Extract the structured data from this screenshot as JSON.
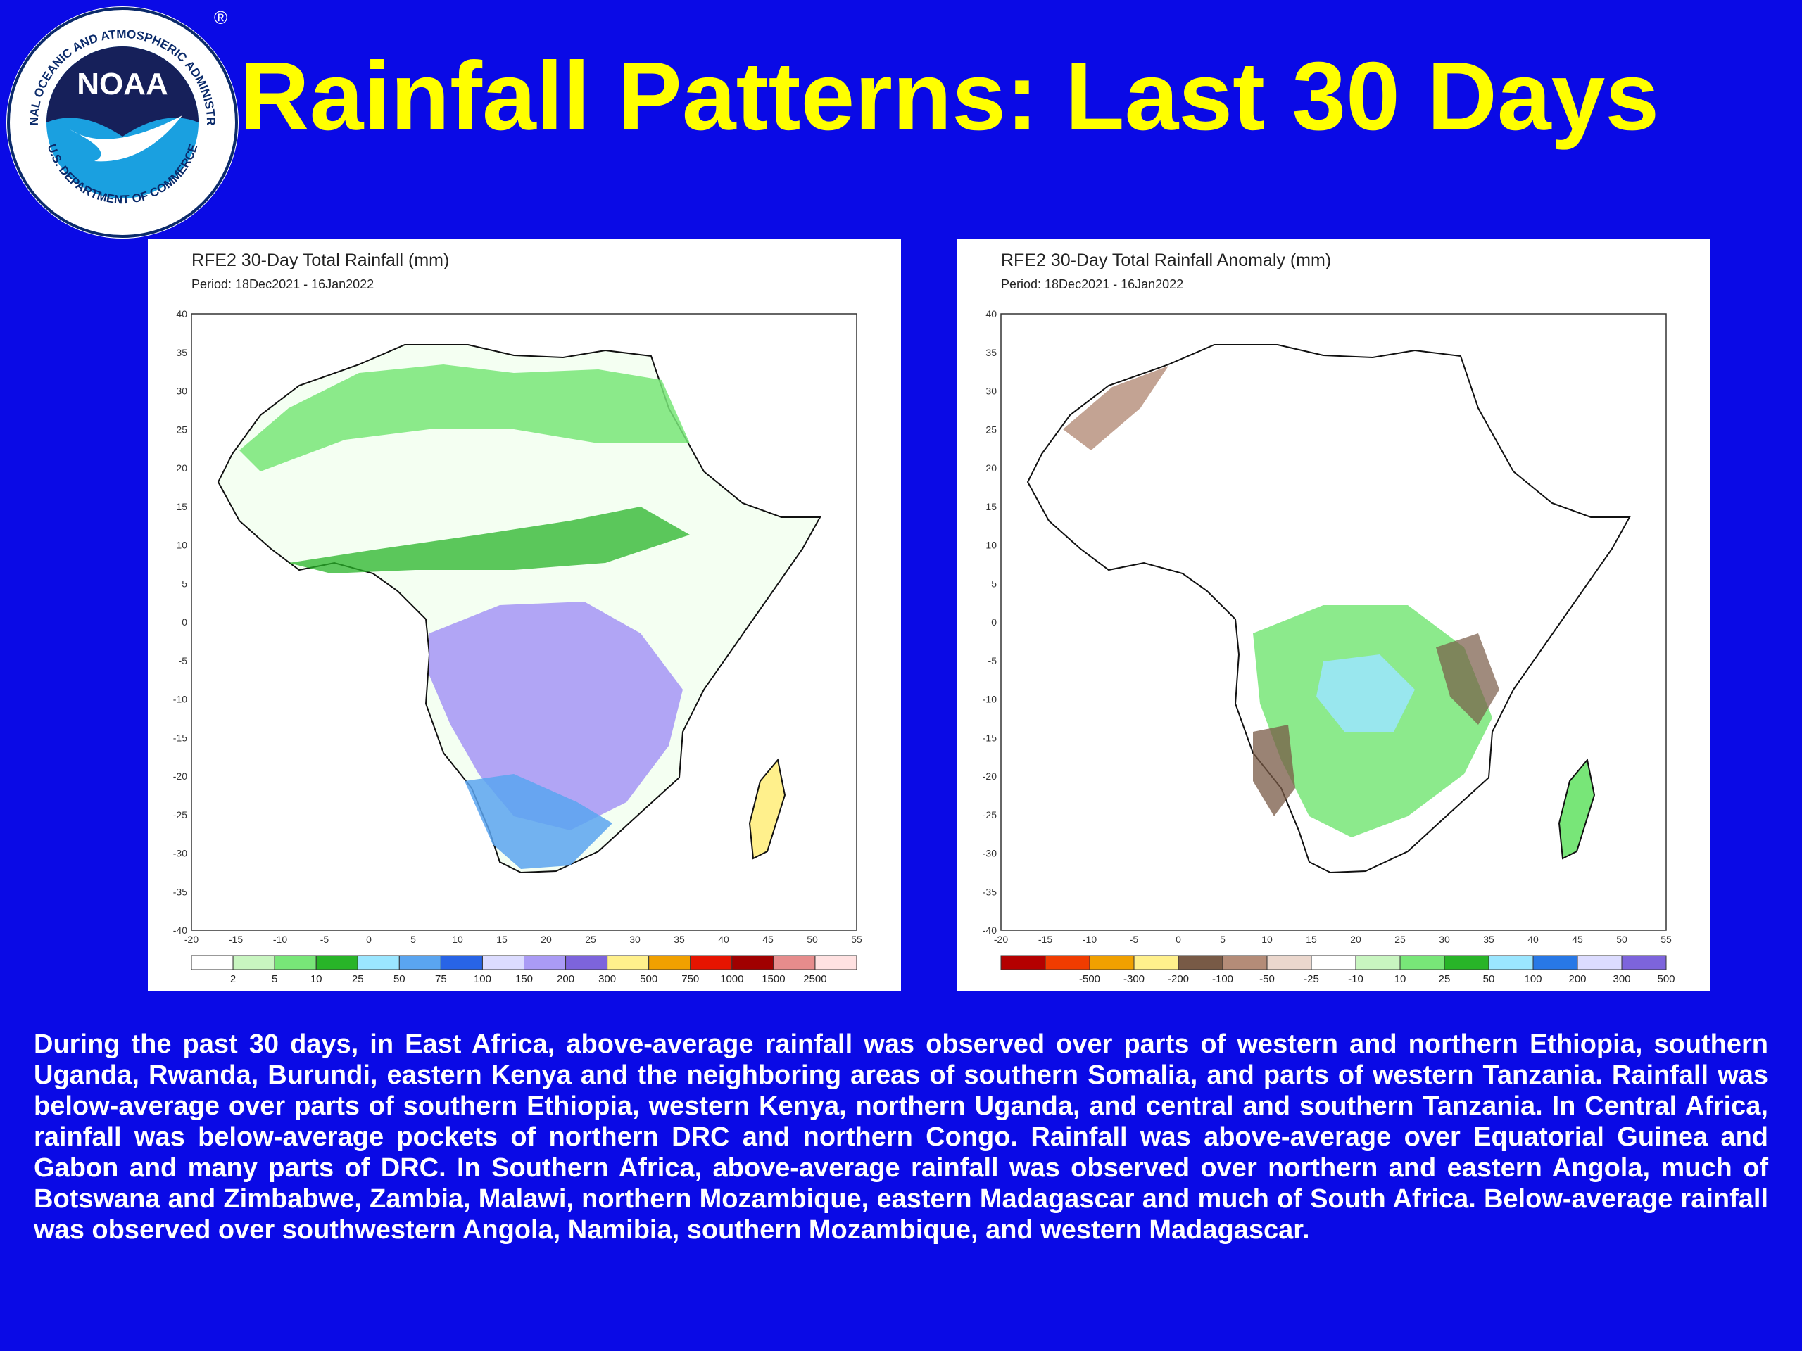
{
  "logo": {
    "name": "NOAA",
    "ring_top": "NATIONAL OCEANIC AND ATMOSPHERIC ADMINISTRATION",
    "ring_bottom": "U.S. DEPARTMENT OF COMMERCE",
    "registered": "®"
  },
  "title": "Rainfall Patterns: Last 30 Days",
  "maps": [
    {
      "title": "RFE2 30-Day Total Rainfall (mm)",
      "period": "Period: 18Dec2021 - 16Jan2022",
      "legend": [
        {
          "label": "2",
          "color": "#ffffff"
        },
        {
          "label": "5",
          "color": "#c8f5c0"
        },
        {
          "label": "10",
          "color": "#78e678"
        },
        {
          "label": "25",
          "color": "#28b428"
        },
        {
          "label": "50",
          "color": "#9be6ff"
        },
        {
          "label": "75",
          "color": "#5aa5f0"
        },
        {
          "label": "100",
          "color": "#2864e6"
        },
        {
          "label": "150",
          "color": "#dcdcff"
        },
        {
          "label": "200",
          "color": "#aa9bf5"
        },
        {
          "label": "300",
          "color": "#7d64dc"
        },
        {
          "label": "500",
          "color": "#fff08c"
        },
        {
          "label": "750",
          "color": "#f0a000"
        },
        {
          "label": "1000",
          "color": "#e61400"
        },
        {
          "label": "1500",
          "color": "#a00000"
        },
        {
          "label": "2500",
          "color": "#e68c8c"
        },
        {
          "label": "",
          "color": "#ffe1e1"
        }
      ]
    },
    {
      "title": "RFE2 30-Day Total Rainfall Anomaly (mm)",
      "period": "Period: 18Dec2021 - 16Jan2022",
      "legend": [
        {
          "label": "",
          "color": "#b40000"
        },
        {
          "label": "-500",
          "color": "#f03c00"
        },
        {
          "label": "-300",
          "color": "#f0a000"
        },
        {
          "label": "-200",
          "color": "#fff08c"
        },
        {
          "label": "-100",
          "color": "#785a46"
        },
        {
          "label": "-50",
          "color": "#b48c78"
        },
        {
          "label": "-25",
          "color": "#ebd7cd"
        },
        {
          "label": "-10",
          "color": "#ffffff"
        },
        {
          "label": "10",
          "color": "#c8f5c0"
        },
        {
          "label": "25",
          "color": "#78e678"
        },
        {
          "label": "50",
          "color": "#28b428"
        },
        {
          "label": "100",
          "color": "#9be6ff"
        },
        {
          "label": "200",
          "color": "#2878e6"
        },
        {
          "label": "300",
          "color": "#dcdcff"
        },
        {
          "label": "500",
          "color": "#7d64dc"
        }
      ]
    }
  ],
  "axes": {
    "lat_ticks": [
      "40",
      "35",
      "30",
      "25",
      "20",
      "15",
      "10",
      "5",
      "0",
      "-5",
      "-10",
      "-15",
      "-20",
      "-25",
      "-30",
      "-35",
      "-40"
    ],
    "lon_ticks": [
      "-20",
      "-15",
      "-10",
      "-5",
      "0",
      "5",
      "10",
      "15",
      "20",
      "25",
      "30",
      "35",
      "40",
      "45",
      "50",
      "55"
    ]
  },
  "caption": "During the past 30 days, in East Africa, above-average rainfall was observed over parts of western and northern Ethiopia, southern Uganda, Rwanda, Burundi, eastern Kenya and the neighboring areas of southern Somalia, and parts of western Tanzania. Rainfall was below-average over parts of southern Ethiopia, western Kenya, northern Uganda, and central and southern Tanzania. In Central Africa, rainfall was below-average pockets of northern DRC and northern Congo. Rainfall was above-average over Equatorial Guinea and Gabon and many parts of DRC. In Southern Africa, above-average rainfall was observed over northern and eastern Angola, much of Botswana and Zimbabwe, Zambia, Malawi, northern Mozambique, eastern Madagascar and  much of South Africa. Below-average rainfall was observed over southwestern Angola, Namibia, southern Mozambique, and western Madagascar."
}
